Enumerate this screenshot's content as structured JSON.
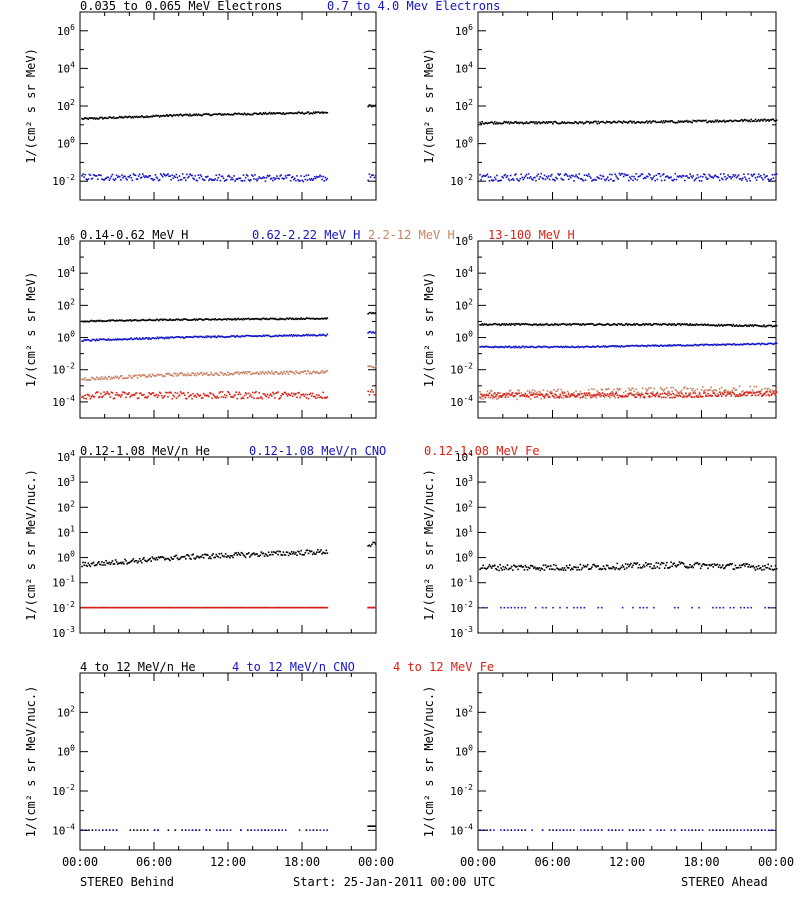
{
  "footer": {
    "left": "STEREO Behind",
    "center": "Start: 25-Jan-2011 00:00 UTC",
    "right": "STEREO Ahead"
  },
  "colors": {
    "black": "#000000",
    "blue": "#1414c8",
    "tan": "#c88264",
    "red": "#dc1e14"
  },
  "chart_data": [
    {
      "type": "scatter",
      "panel": "electrons",
      "legend": [
        {
          "text": "0.035 to 0.065 MeV Electrons",
          "color": "#000000"
        },
        {
          "text": "0.7 to 4.0 Mev Electrons",
          "color": "#1414c8"
        }
      ],
      "ylabel": "1/(cm² s sr MeV)",
      "yscale": "log",
      "ylim": [
        -3,
        7
      ],
      "yticks": [
        -2,
        0,
        2,
        4,
        6
      ],
      "xticks": [
        "00:00",
        "06:00",
        "12:00",
        "18:00",
        "00:00"
      ],
      "xlim": [
        0,
        24
      ],
      "behind": [
        {
          "series": "0.035 to 0.065 MeV Electrons",
          "color": "#000000",
          "level": [
            1.3,
            1.5,
            1.6,
            1.65
          ],
          "x_end": 20,
          "gap_level": 2.0,
          "noise": 0.05
        },
        {
          "series": "0.7 to 4.0 Mev Electrons",
          "color": "#1414c8",
          "level": [
            -1.8,
            -1.8,
            -1.85,
            -1.85
          ],
          "x_end": 20,
          "gap_level": -1.8,
          "noise": 0.18
        }
      ],
      "ahead": [
        {
          "series": "0.035 to 0.065 MeV Electrons",
          "color": "#000000",
          "level": [
            1.1,
            1.1,
            1.15,
            1.25
          ],
          "x_end": 24,
          "noise": 0.06
        },
        {
          "series": "0.7 to 4.0 Mev Electrons",
          "color": "#1414c8",
          "level": [
            -1.8,
            -1.8,
            -1.8,
            -1.8
          ],
          "x_end": 24,
          "noise": 0.2
        }
      ]
    },
    {
      "type": "scatter",
      "panel": "protons",
      "legend": [
        {
          "text": "0.14-0.62 MeV H",
          "color": "#000000"
        },
        {
          "text": "0.62-2.22 MeV H",
          "color": "#1414c8"
        },
        {
          "text": "2.2-12 MeV H",
          "color": "#c88264"
        },
        {
          "text": "13-100 MeV H",
          "color": "#dc1e14"
        }
      ],
      "ylabel": "1/(cm² s sr MeV)",
      "yscale": "log",
      "ylim": [
        -5,
        6
      ],
      "yticks": [
        -4,
        -2,
        0,
        2,
        4,
        6
      ],
      "xticks": [
        "00:00",
        "06:00",
        "12:00",
        "18:00",
        "00:00"
      ],
      "xlim": [
        0,
        24
      ],
      "behind": [
        {
          "series": "0.14-0.62 MeV H",
          "color": "#000000",
          "level": [
            1.0,
            1.1,
            1.15,
            1.2
          ],
          "x_end": 20,
          "gap_level": 1.5,
          "noise": 0.04
        },
        {
          "series": "0.62-2.22 MeV H",
          "color": "#1414c8",
          "level": [
            -0.2,
            0.0,
            0.1,
            0.2
          ],
          "x_end": 20,
          "gap_level": 0.3,
          "noise": 0.05
        },
        {
          "series": "2.2-12 MeV H",
          "color": "#c88264",
          "level": [
            -2.6,
            -2.3,
            -2.2,
            -2.1
          ],
          "x_end": 20,
          "gap_level": -1.8,
          "noise": 0.1
        },
        {
          "series": "13-100 MeV H",
          "color": "#dc1e14",
          "level": [
            -3.6,
            -3.6,
            -3.6,
            -3.6
          ],
          "x_end": 20,
          "gap_level": -3.4,
          "noise": 0.22
        }
      ],
      "ahead": [
        {
          "series": "0.14-0.62 MeV H",
          "color": "#000000",
          "level": [
            0.8,
            0.8,
            0.8,
            0.7
          ],
          "x_end": 24,
          "noise": 0.05
        },
        {
          "series": "0.62-2.22 MeV H",
          "color": "#1414c8",
          "level": [
            -0.6,
            -0.6,
            -0.5,
            -0.4
          ],
          "x_end": 24,
          "noise": 0.04
        },
        {
          "series": "2.2-12 MeV H",
          "color": "#c88264",
          "level": [
            -3.6,
            -3.5,
            -3.4,
            -3.3
          ],
          "x_end": 24,
          "noise": 0.3
        },
        {
          "series": "13-100 MeV H",
          "color": "#dc1e14",
          "level": [
            -3.6,
            -3.6,
            -3.6,
            -3.5
          ],
          "x_end": 24,
          "noise": 0.15
        }
      ]
    },
    {
      "type": "scatter",
      "panel": "heavy-ions-low",
      "legend": [
        {
          "text": "0.12-1.08 MeV/n He",
          "color": "#000000"
        },
        {
          "text": "0.12-1.08 MeV/n CNO",
          "color": "#1414c8"
        },
        {
          "text": "0.12-1.08 MeV Fe",
          "color": "#dc1e14"
        }
      ],
      "ylabel": "1/(cm² s sr MeV/nuc.)",
      "yscale": "log",
      "ylim": [
        -3,
        4
      ],
      "yticks": [
        -3,
        -2,
        -1,
        0,
        1,
        2,
        3,
        4
      ],
      "xticks": [
        "00:00",
        "06:00",
        "12:00",
        "18:00",
        "00:00"
      ],
      "xlim": [
        0,
        24
      ],
      "behind": [
        {
          "series": "0.12-1.08 MeV/n He",
          "color": "#000000",
          "level": [
            -0.3,
            0.0,
            0.15,
            0.3
          ],
          "x_end": 20,
          "gap_level": 0.5,
          "noise": 0.1
        },
        {
          "series": "0.12-1.08 MeV/n CNO",
          "color": "#1414c8",
          "level": [
            -2.0,
            -2.0,
            -2.0,
            -2.0
          ],
          "x_end": 20,
          "gap_level": -2.0,
          "noise": 0.0,
          "sparse": true
        },
        {
          "series": "0.12-1.08 MeV Fe",
          "color": "#dc1e14",
          "level": [
            -2.0,
            -2.0,
            -2.0,
            -2.0
          ],
          "x_end": 20,
          "gap_level": -2.0,
          "noise": 0.0
        }
      ],
      "ahead": [
        {
          "series": "0.12-1.08 MeV/n He",
          "color": "#000000",
          "level": [
            -0.4,
            -0.4,
            -0.3,
            -0.4
          ],
          "x_end": 24,
          "noise": 0.12
        },
        {
          "series": "0.12-1.08 MeV/n CNO",
          "color": "#1414c8",
          "level": [
            -2.0,
            -2.0,
            -2.0,
            -2.0
          ],
          "x_end": 24,
          "noise": 0.0,
          "sparse": true
        }
      ]
    },
    {
      "type": "scatter",
      "panel": "heavy-ions-high",
      "legend": [
        {
          "text": "4 to 12 MeV/n He",
          "color": "#000000"
        },
        {
          "text": "4 to 12 MeV/n CNO",
          "color": "#1414c8"
        },
        {
          "text": "4 to 12 MeV Fe",
          "color": "#dc1e14"
        }
      ],
      "ylabel": "1/(cm² s sr MeV/nuc.)",
      "yscale": "log",
      "ylim": [
        -5,
        4
      ],
      "yticks": [
        -4,
        -2,
        0,
        2
      ],
      "xticks": [
        "00:00",
        "06:00",
        "12:00",
        "18:00",
        "00:00"
      ],
      "xlim": [
        0,
        24
      ],
      "behind": [
        {
          "series": "4 to 12 MeV/n He",
          "color": "#000000",
          "level": [
            -4.0,
            -4.0,
            -4.0,
            -4.0
          ],
          "x_end": 20,
          "gap_level": -3.8,
          "noise": 0.0,
          "sparse": true
        },
        {
          "series": "4 to 12 MeV/n CNO",
          "color": "#1414c8",
          "level": [
            -4.0,
            -4.0,
            -4.0,
            -4.0
          ],
          "x_end": 20,
          "noise": 0.0,
          "sparse": true
        }
      ],
      "ahead": [
        {
          "series": "4 to 12 MeV/n He",
          "color": "#000000",
          "level": [
            -4.0,
            -4.0,
            -4.0,
            -4.0
          ],
          "x_end": 24,
          "noise": 0.0,
          "sparse": true
        },
        {
          "series": "4 to 12 MeV/n CNO",
          "color": "#1414c8",
          "level": [
            -4.0,
            -4.0,
            -4.0,
            -4.0
          ],
          "x_end": 24,
          "noise": 0.0,
          "sparse": true
        }
      ]
    }
  ]
}
